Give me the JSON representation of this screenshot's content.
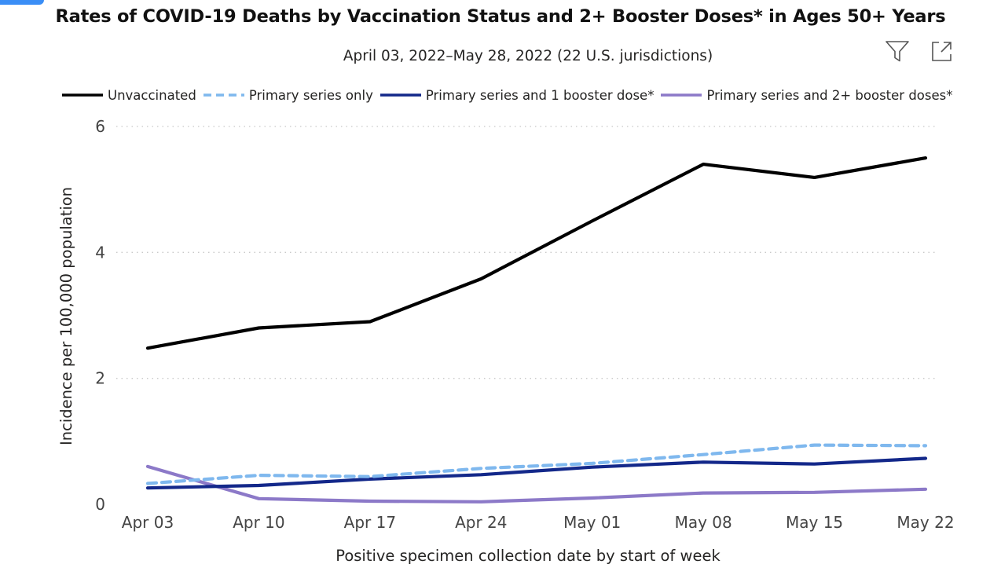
{
  "chart_data": {
    "type": "line",
    "title": "Rates of COVID-19 Deaths by Vaccination Status and 2+ Booster Doses* in Ages 50+ Years",
    "subtitle": "April 03, 2022–May 28, 2022 (22 U.S. jurisdictions)",
    "xlabel": "Positive specimen collection date by start of week",
    "ylabel": "Incidence per 100,000 population",
    "categories": [
      "Apr 03",
      "Apr 10",
      "Apr 17",
      "Apr 24",
      "May 01",
      "May 08",
      "May 15",
      "May 22"
    ],
    "ylim": [
      0,
      6
    ],
    "yticks": [
      0,
      2,
      4,
      6
    ],
    "grid": true,
    "legend_position": "top-left",
    "series": [
      {
        "name": "Unvaccinated",
        "color": "#000000",
        "dash": false,
        "values": [
          2.48,
          2.8,
          2.9,
          3.58,
          4.5,
          5.4,
          5.19,
          5.5
        ]
      },
      {
        "name": "Primary series only",
        "color": "#7fb8ee",
        "dash": true,
        "values": [
          0.33,
          0.46,
          0.44,
          0.57,
          0.65,
          0.79,
          0.94,
          0.93
        ]
      },
      {
        "name": "Primary series and 1 booster dose*",
        "color": "#13288a",
        "dash": false,
        "values": [
          0.26,
          0.3,
          0.4,
          0.47,
          0.59,
          0.67,
          0.64,
          0.73
        ]
      },
      {
        "name": "Primary series and 2+ booster doses*",
        "color": "#8c79c8",
        "dash": false,
        "values": [
          0.6,
          0.09,
          0.05,
          0.04,
          0.1,
          0.18,
          0.19,
          0.24
        ]
      }
    ]
  },
  "toolbar": {
    "icons": [
      "filter-icon",
      "focus-mode-icon"
    ]
  }
}
